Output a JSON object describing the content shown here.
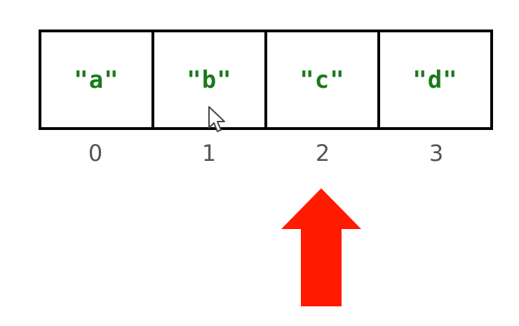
{
  "array": {
    "cells": [
      {
        "value": "\"a\"",
        "index": "0"
      },
      {
        "value": "\"b\"",
        "index": "1"
      },
      {
        "value": "\"c\"",
        "index": "2"
      },
      {
        "value": "\"d\"",
        "index": "3"
      }
    ]
  },
  "pointer": {
    "target_index": 2,
    "color": "#ff1a00"
  },
  "colors": {
    "value_text": "#1a7a1a",
    "border": "#000000",
    "index_text": "#555555"
  },
  "icons": {
    "cursor": "mouse-cursor-icon",
    "pointer": "up-arrow-icon"
  }
}
